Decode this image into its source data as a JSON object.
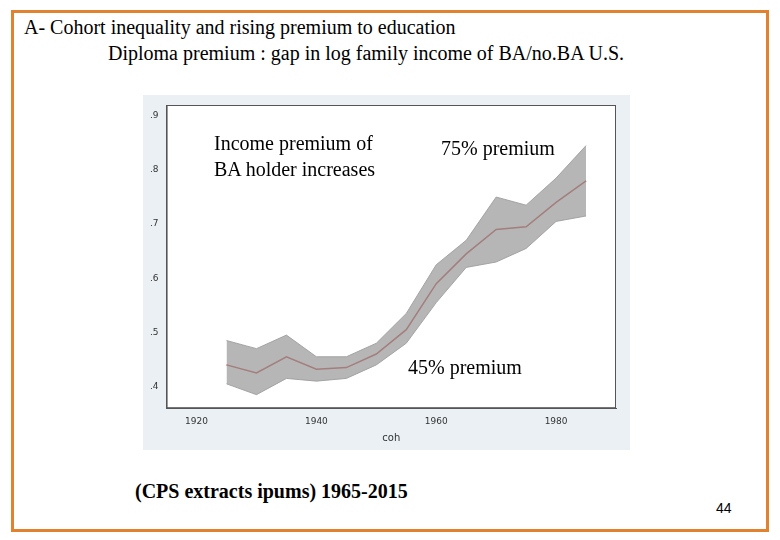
{
  "title": "A- Cohort inequality and rising premium to education",
  "subtitle": "Diploma premium : gap in log family income of BA/no.BA U.S.",
  "annotations": [
    "Income premium of BA holder increases",
    "75% premium",
    "45% premium"
  ],
  "footer": "(CPS extracts ipums) 1965-2015",
  "page_number": 44,
  "chart_data": {
    "type": "line",
    "xlabel": "coh",
    "x": [
      1925,
      1930,
      1935,
      1940,
      1945,
      1950,
      1955,
      1960,
      1965,
      1970,
      1975,
      1980,
      1985
    ],
    "values": [
      0.44,
      0.425,
      0.455,
      0.432,
      0.435,
      0.46,
      0.505,
      0.59,
      0.645,
      0.69,
      0.695,
      0.74,
      0.78
    ],
    "color": "#b22222",
    "band": {
      "upper": [
        0.485,
        0.47,
        0.495,
        0.455,
        0.455,
        0.48,
        0.535,
        0.625,
        0.67,
        0.75,
        0.735,
        0.785,
        0.845
      ],
      "lower": [
        0.405,
        0.385,
        0.415,
        0.41,
        0.415,
        0.44,
        0.48,
        0.555,
        0.62,
        0.63,
        0.655,
        0.705,
        0.715
      ],
      "color": "#9e9e9e"
    },
    "xlim": [
      1915,
      1990
    ],
    "xticks": [
      1920,
      1940,
      1960,
      1980
    ],
    "ylim": [
      0.36,
      0.92
    ],
    "yticks": [
      {
        "value": 0.4,
        "label": ".4"
      },
      {
        "value": 0.5,
        "label": ".5"
      },
      {
        "value": 0.6,
        "label": ".6"
      },
      {
        "value": 0.7,
        "label": ".7"
      },
      {
        "value": 0.8,
        "label": ".8"
      },
      {
        "value": 0.9,
        "label": ".9"
      }
    ],
    "grid": false
  }
}
